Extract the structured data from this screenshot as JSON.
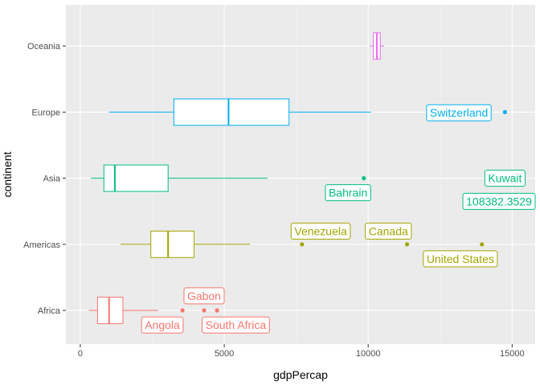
{
  "chart_data": {
    "type": "boxplot",
    "orientation": "horizontal",
    "xlabel": "gdpPercap",
    "ylabel": "continent",
    "xlim": [
      -500,
      15800
    ],
    "x_ticks": [
      0,
      5000,
      10000,
      15000
    ],
    "x_tick_labels": [
      "0",
      "5000",
      "10000",
      "15000"
    ],
    "grid": true,
    "categories": [
      "Africa",
      "Americas",
      "Asia",
      "Europe",
      "Oceania"
    ],
    "boxes": [
      {
        "continent": "Africa",
        "color": "#F8766D",
        "whisker_low": 300,
        "q1": 600,
        "median": 1000,
        "q3": 1480,
        "whisker_high": 2700
      },
      {
        "continent": "Americas",
        "color": "#A3A500",
        "whisker_low": 1400,
        "q1": 2450,
        "median": 3050,
        "q3": 3950,
        "whisker_high": 5900
      },
      {
        "continent": "Asia",
        "color": "#00BF7D",
        "whisker_low": 370,
        "q1": 820,
        "median": 1200,
        "q3": 3050,
        "whisker_high": 6500
      },
      {
        "continent": "Europe",
        "color": "#00B0F6",
        "whisker_low": 1000,
        "q1": 3250,
        "median": 5150,
        "q3": 7250,
        "whisker_high": 10100
      },
      {
        "continent": "Oceania",
        "color": "#E76BF3",
        "whisker_low": 10050,
        "q1": 10180,
        "median": 10300,
        "q3": 10420,
        "whisker_high": 10550
      }
    ],
    "outliers": [
      {
        "continent": "Africa",
        "x": 3550,
        "color": "#F8766D"
      },
      {
        "continent": "Africa",
        "x": 4300,
        "color": "#F8766D"
      },
      {
        "continent": "Africa",
        "x": 4750,
        "color": "#F8766D"
      },
      {
        "continent": "Americas",
        "x": 7700,
        "color": "#A3A500"
      },
      {
        "continent": "Americas",
        "x": 11350,
        "color": "#A3A500"
      },
      {
        "continent": "Americas",
        "x": 13950,
        "color": "#A3A500"
      },
      {
        "continent": "Asia",
        "x": 9850,
        "color": "#00BF7D"
      },
      {
        "continent": "Europe",
        "x": 14750,
        "color": "#00B0F6"
      }
    ],
    "annotations": [
      {
        "text": "Gabon",
        "continent": "Africa",
        "x": 4300,
        "dy": -0.22,
        "color": "#F8766D"
      },
      {
        "text": "Angola",
        "continent": "Africa",
        "x": 2850,
        "dy": 0.22,
        "color": "#F8766D"
      },
      {
        "text": "South Africa",
        "continent": "Africa",
        "x": 5400,
        "dy": 0.22,
        "color": "#F8766D"
      },
      {
        "text": "Venezuela",
        "continent": "Americas",
        "x": 8350,
        "dy": -0.2,
        "color": "#A3A500"
      },
      {
        "text": "Canada",
        "continent": "Americas",
        "x": 10700,
        "dy": -0.2,
        "color": "#A3A500"
      },
      {
        "text": "United States",
        "continent": "Americas",
        "x": 13200,
        "dy": 0.22,
        "color": "#A3A500"
      },
      {
        "text": "Bahrain",
        "continent": "Asia",
        "x": 9300,
        "dy": 0.22,
        "color": "#00BF7D"
      },
      {
        "text": "Kuwait",
        "continent": "Asia",
        "x": 14750,
        "dy": 0.0,
        "color": "#00BF7D"
      },
      {
        "text": "108382.3529",
        "continent": "Asia",
        "x": 14700,
        "dy": 0.35,
        "color": "#00BF7D"
      },
      {
        "text": "Switzerland",
        "continent": "Europe",
        "x": 13150,
        "dy": 0.01,
        "color": "#00B0F6"
      }
    ]
  }
}
